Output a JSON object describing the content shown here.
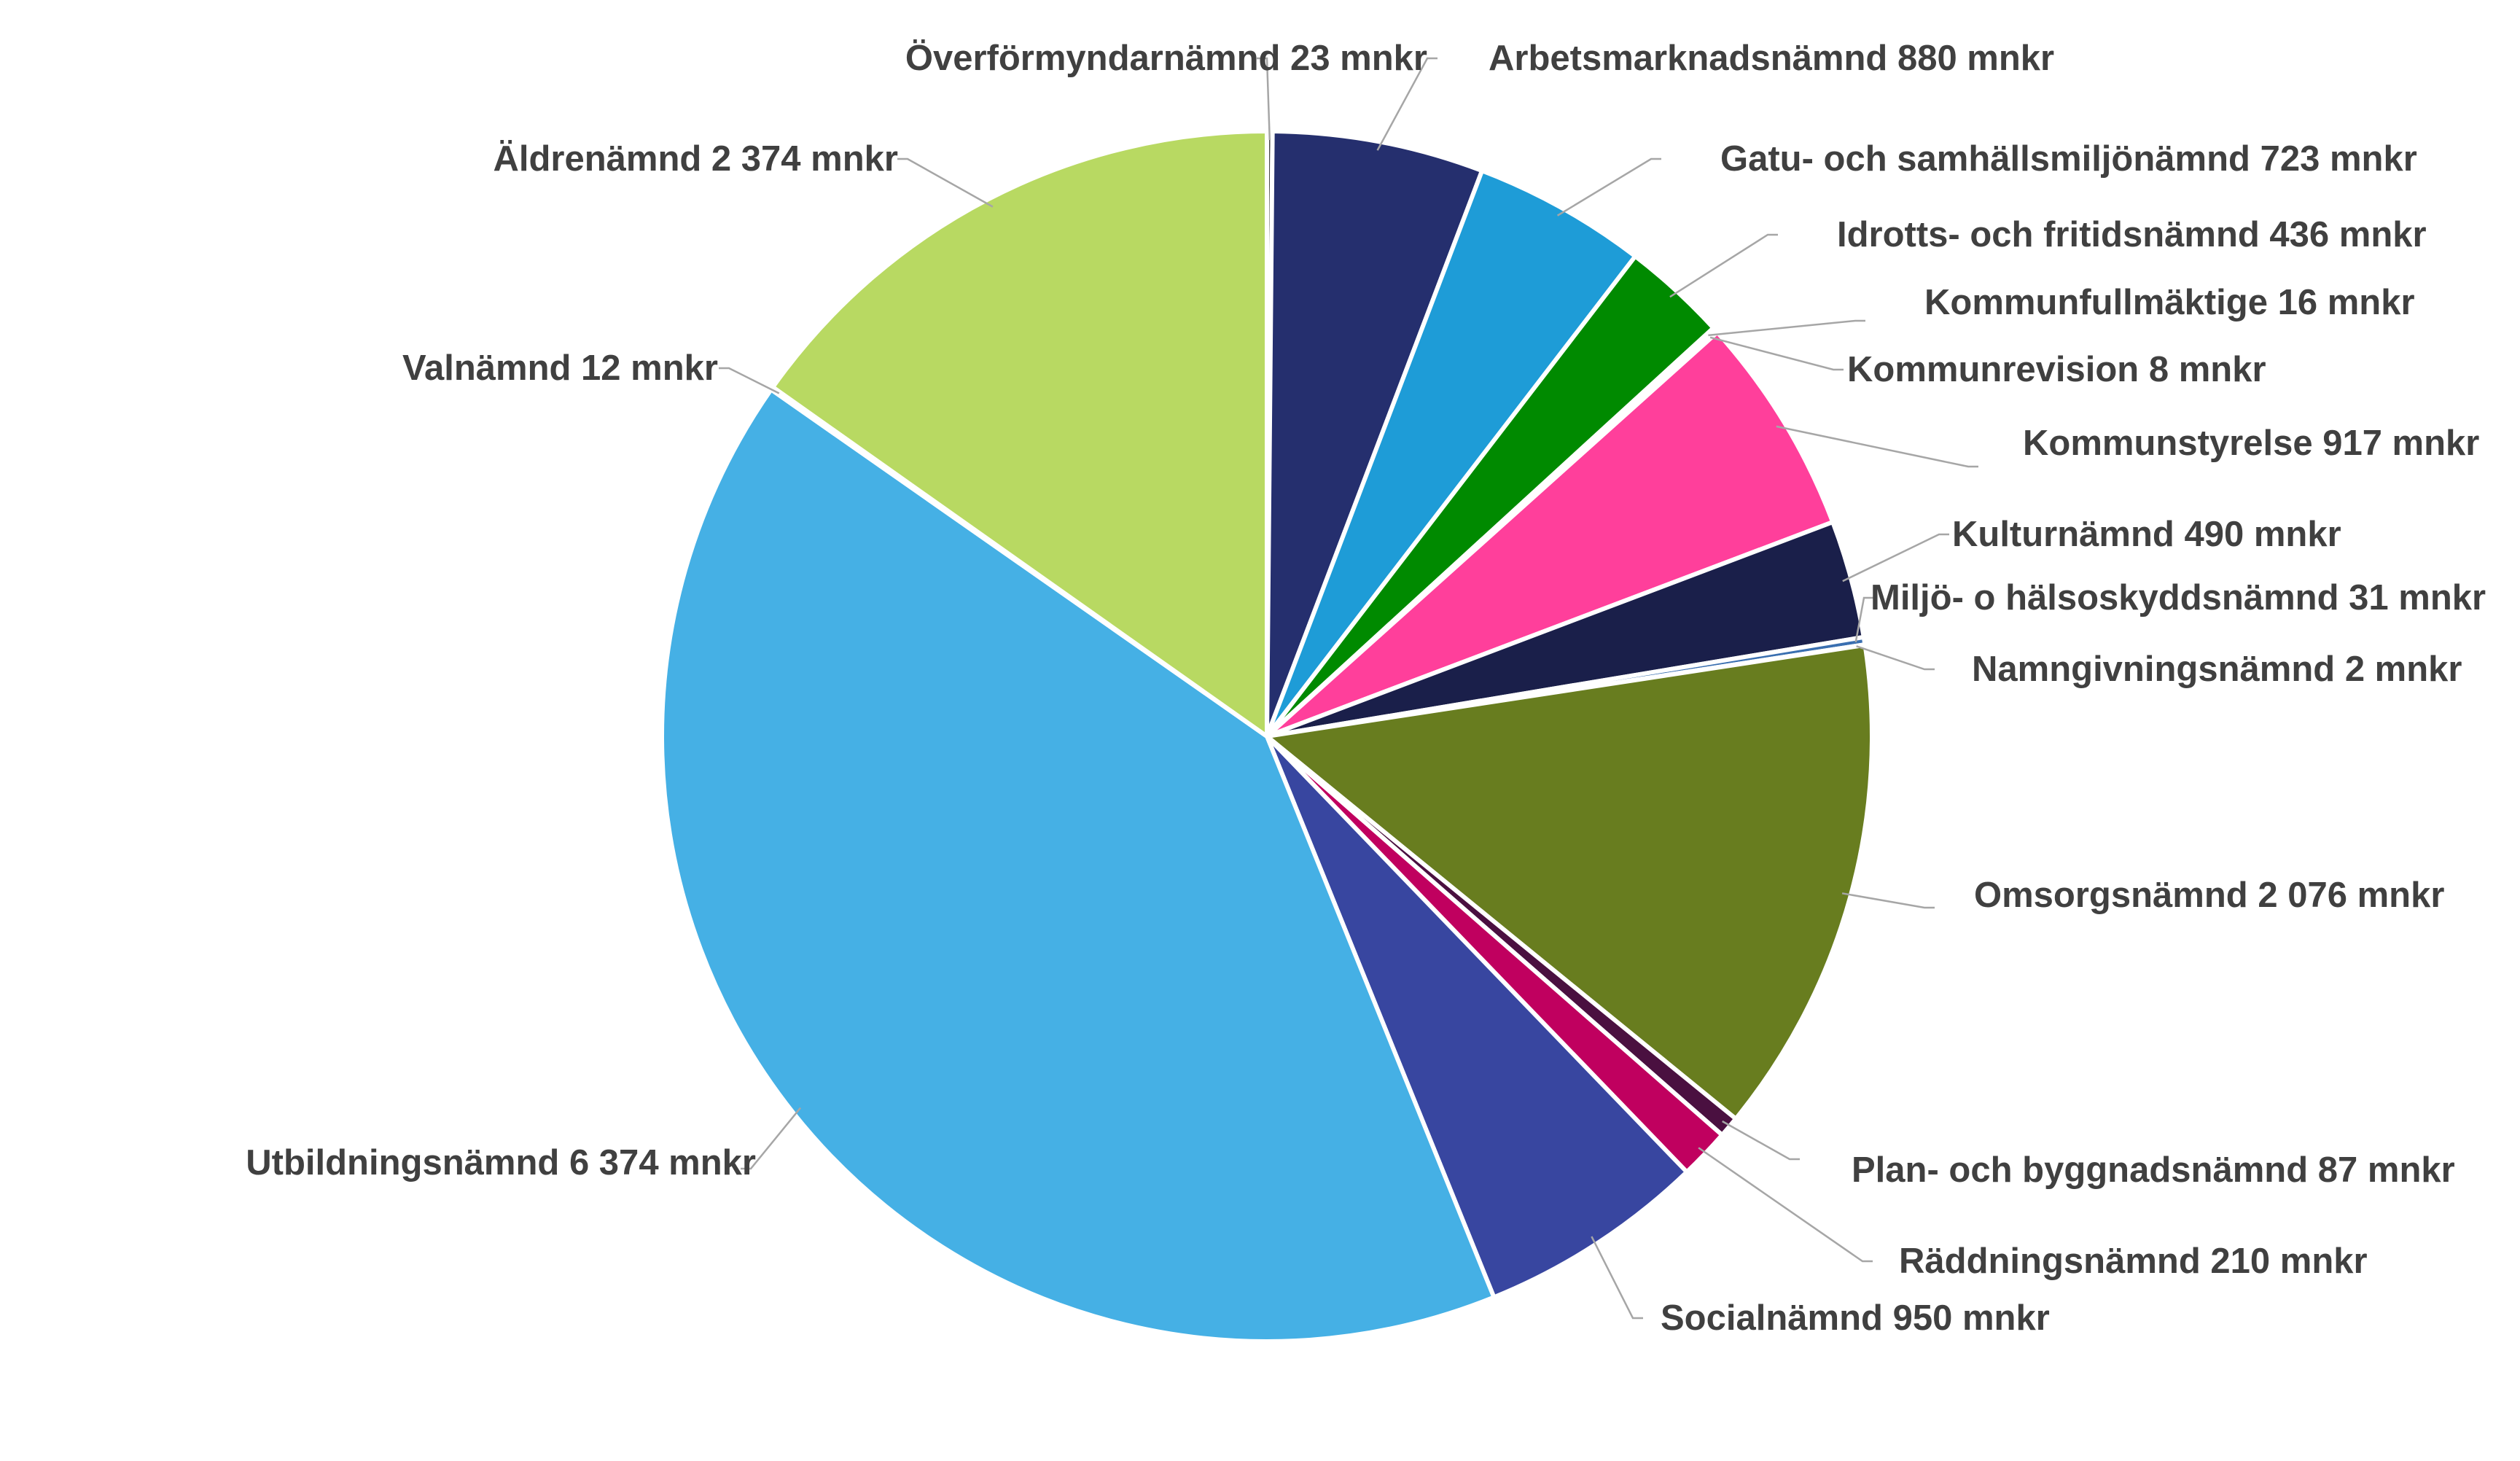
{
  "chart_data": {
    "type": "pie",
    "unit": "mnkr",
    "start": "top",
    "direction": "clockwise",
    "legend": "none",
    "title": "",
    "slices": [
      {
        "name": "Överförmyndarnämnd",
        "value": 23,
        "label": "Överförmyndarnämnd 23 mnkr",
        "color": "#4a4a4a"
      },
      {
        "name": "Arbetsmarknadsnämnd",
        "value": 880,
        "label": "Arbetsmarknadsnämnd 880 mnkr",
        "color": "#252f6e"
      },
      {
        "name": "Gatu- och samhällsmiljönämnd",
        "value": 723,
        "label": "Gatu- och samhällsmiljönämnd 723 mnkr",
        "color": "#1e9cd7"
      },
      {
        "name": "Idrotts- och fritidsnämnd",
        "value": 436,
        "label": "Idrotts- och fritidsnämnd 436 mnkr",
        "color": "#008a00"
      },
      {
        "name": "Kommunfullmäktige",
        "value": 16,
        "label": "Kommunfullmäktige 16 mnkr",
        "color": "#7a7a7a"
      },
      {
        "name": "Kommunrevision",
        "value": 8,
        "label": "Kommunrevision 8 mnkr",
        "color": "#c2a0c8"
      },
      {
        "name": "Kommunstyrelse",
        "value": 917,
        "label": "Kommunstyrelse 917 mnkr",
        "color": "#ff3f9b"
      },
      {
        "name": "Kulturnämnd",
        "value": 490,
        "label": "Kulturnämnd 490 mnkr",
        "color": "#1a1f4a"
      },
      {
        "name": "Miljö- o hälsoskyddsnämnd",
        "value": 31,
        "label": "Miljö- o hälsoskyddsnämnd 31 mnkr",
        "color": "#3a6fb0"
      },
      {
        "name": "Namngivningsnämnd",
        "value": 2,
        "label": "Namngivningsnämnd 2 mnkr",
        "color": "#6a7a3a"
      },
      {
        "name": "Omsorgsnämnd",
        "value": 2076,
        "label": "Omsorgsnämnd 2 076 mnkr",
        "color": "#687d1f"
      },
      {
        "name": "Plan- och byggnadsnämnd",
        "value": 87,
        "label": "Plan- och byggnadsnämnd 87 mnkr",
        "color": "#4a1040"
      },
      {
        "name": "Räddningsnämnd",
        "value": 210,
        "label": "Räddningsnämnd 210 mnkr",
        "color": "#c0005f"
      },
      {
        "name": "Socialnämnd",
        "value": 950,
        "label": "Socialnämnd 950 mnkr",
        "color": "#3846a0"
      },
      {
        "name": "Utbildningsnämnd",
        "value": 6374,
        "label": "Utbildningsnämnd 6 374 mnkr",
        "color": "#45b0e5"
      },
      {
        "name": "Valnämnd",
        "value": 12,
        "label": "Valnämnd 12 mnkr",
        "color": "#9aa0a6"
      },
      {
        "name": "Äldrenämnd",
        "value": 2374,
        "label": "Äldrenämnd 2 374 mnkr",
        "color": "#b8d962"
      }
    ]
  }
}
